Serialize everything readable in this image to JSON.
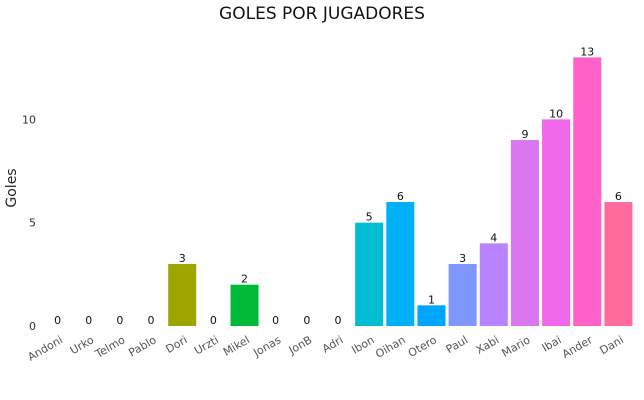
{
  "chart_data": {
    "type": "bar",
    "title": "GOLES POR JUGADORES",
    "xlabel": "",
    "ylabel": "Goles",
    "categories": [
      "Andoni",
      "Urko",
      "Telmo",
      "Pablo",
      "Dori",
      "Urzti",
      "Mikel",
      "Jonas",
      "JonB",
      "Adri",
      "Ibon",
      "Oihan",
      "Otero",
      "Paul",
      "Xabi",
      "Mario",
      "Ibai",
      "Ander",
      "Dani"
    ],
    "values": [
      0,
      0,
      0,
      0,
      3,
      0,
      2,
      0,
      0,
      0,
      5,
      6,
      1,
      3,
      4,
      9,
      10,
      13,
      6
    ],
    "value_labels": [
      "0",
      "0",
      "0",
      "0",
      "3",
      "0",
      "2",
      "0",
      "0",
      "0",
      "5",
      "6",
      "1",
      "3",
      "4",
      "9",
      "10",
      "13",
      "6"
    ],
    "colors": [
      "#f8766d",
      "#e7851e",
      "#d09400",
      "#b2a100",
      "#9da600",
      "#6bb100",
      "#00ba38",
      "#00bf7d",
      "#00c0af",
      "#00bcd8",
      "#00bdd2",
      "#00b0f6",
      "#00a5ff",
      "#7f96ff",
      "#b983ff",
      "#d976f0",
      "#ef67eb",
      "#ff61c9",
      "#ff6c9c"
    ],
    "y_ticks": [
      0,
      5,
      10
    ],
    "y_tick_labels": [
      "0",
      "5",
      "10"
    ],
    "ylim": [
      0,
      13.6
    ],
    "grid": false,
    "legend": "none"
  }
}
